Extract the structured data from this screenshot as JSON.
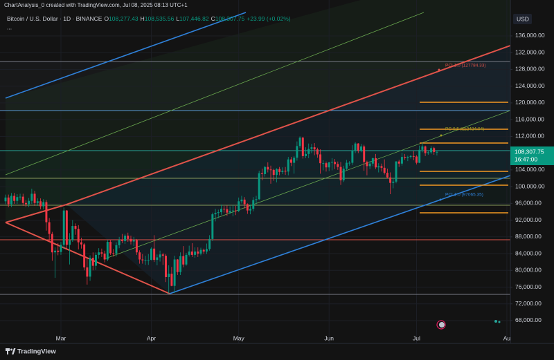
{
  "header": {
    "credit": "ChartAnalysis_0 created with TradingView.com, Jul 08, 2025 08:13 UTC+1",
    "symbol": "Bitcoin / U.S. Dollar · 1D · BINANCE",
    "ohlc": [
      {
        "key": "O",
        "value": "108,277.43"
      },
      {
        "key": "H",
        "value": "108,535.56"
      },
      {
        "key": "L",
        "value": "107,446.82"
      },
      {
        "key": "C",
        "value": "108,307.75"
      }
    ],
    "change": "+23.99 (+0.02%)",
    "more": "..."
  },
  "currency": "USD",
  "price_badge": {
    "price": "108,307.75",
    "time": "16:47:00"
  },
  "annotations": [
    {
      "text": "PCL1.0 (127784.33)",
      "color": "#e0534a"
    },
    {
      "text": "PC 0.5 (112424.04)",
      "color": "#9e9d24"
    },
    {
      "text": "PCL1.0 (97065.35)",
      "color": "#2f80d8"
    }
  ],
  "brand": "TradingView",
  "chart_data": {
    "type": "candlestick",
    "up_color": "#089981",
    "down_color": "#f23645",
    "grid": true,
    "xlim": [
      -1.9,
      173.2
    ],
    "ylim": [
      62550,
      144580
    ],
    "xticks": [
      {
        "value": 19,
        "label": "Mar"
      },
      {
        "value": 50,
        "label": "Apr"
      },
      {
        "value": 80,
        "label": "May"
      },
      {
        "value": 111,
        "label": "Jun"
      },
      {
        "value": 141,
        "label": "Jul"
      },
      {
        "value": 172,
        "label": "Au"
      }
    ],
    "yticks": [
      {
        "value": 136000,
        "label": "136,000.00"
      },
      {
        "value": 132000,
        "label": "132,000.00"
      },
      {
        "value": 128000,
        "label": "128,000.00"
      },
      {
        "value": 124000,
        "label": "124,000.00"
      },
      {
        "value": 120000,
        "label": "120,000.00"
      },
      {
        "value": 116000,
        "label": "116,000.00"
      },
      {
        "value": 112000,
        "label": "112,000.00"
      },
      {
        "value": 104000,
        "label": "104,000.00"
      },
      {
        "value": 100000,
        "label": "100,000.00"
      },
      {
        "value": 96000,
        "label": "96,000.00"
      },
      {
        "value": 92000,
        "label": "92,000.00"
      },
      {
        "value": 88000,
        "label": "88,000.00"
      },
      {
        "value": 84000,
        "label": "84,000.00"
      },
      {
        "value": 80000,
        "label": "80,000.00"
      },
      {
        "value": 76000,
        "label": "76,000.00"
      },
      {
        "value": 72000,
        "label": "72,000.00"
      },
      {
        "value": 68000,
        "label": "68,000.00"
      }
    ],
    "open": [
      96500,
      97400,
      95800,
      97800,
      96600,
      97500,
      97600,
      96100,
      95800,
      96600,
      98300,
      96100,
      96500,
      95300,
      96300,
      91500,
      88700,
      84300,
      84700,
      84400,
      86100,
      94300,
      86100,
      87200,
      90600,
      89900,
      86700,
      86200,
      80700,
      78500,
      83000,
      81100,
      83700,
      84300,
      84000,
      82600,
      86800,
      84100,
      84000,
      86000,
      87300,
      87000,
      88300,
      87500,
      86900,
      87200,
      84300,
      82600,
      82400,
      82500,
      82500,
      85200,
      82500,
      83100,
      83800,
      83500,
      78400,
      79200,
      76300,
      82600,
      79600,
      83400,
      81400,
      83700,
      84500,
      83700,
      84500,
      84000,
      84900,
      84500,
      85100,
      87500,
      93400,
      93700,
      93900,
      94700,
      94600,
      93800,
      94200,
      94300,
      94200,
      96500,
      96900,
      95800,
      94300,
      94700,
      96800,
      97000,
      103200,
      103000,
      104700,
      104100,
      104000,
      102800,
      104200,
      103500,
      103800,
      103600,
      106500,
      105700,
      106900,
      109700,
      111700,
      107300,
      107800,
      109000,
      109400,
      108900,
      107700,
      105600,
      105600,
      104600,
      105800,
      105900,
      105400,
      104700,
      101500,
      104300,
      105700,
      105700,
      108700,
      110300,
      108600,
      109600,
      105900,
      104900,
      105500,
      106800,
      104600,
      104900,
      104500,
      103300,
      102200,
      100900,
      101200,
      106000,
      105500,
      107100,
      106900,
      107100,
      107300,
      107200,
      105700,
      108800,
      109600,
      108000,
      108200,
      109200,
      108277.43
    ],
    "high": [
      98100,
      98100,
      98500,
      98500,
      98200,
      98300,
      98300,
      96800,
      97300,
      99500,
      99000,
      97200,
      97200,
      97000,
      96800,
      92500,
      89200,
      85500,
      86500,
      86800,
      95000,
      94400,
      88900,
      92000,
      91200,
      90800,
      87800,
      86500,
      83000,
      83600,
      84300,
      84300,
      85300,
      85200,
      84700,
      87300,
      87400,
      85100,
      86700,
      88000,
      88700,
      88700,
      89000,
      88300,
      88000,
      87500,
      84800,
      83900,
      83500,
      83900,
      85500,
      88400,
      83800,
      84700,
      84200,
      83900,
      81200,
      80800,
      83500,
      82700,
      84300,
      85800,
      84200,
      85900,
      86500,
      85500,
      85500,
      85400,
      85200,
      86400,
      88400,
      93800,
      94700,
      94500,
      95700,
      95400,
      95500,
      95300,
      95600,
      95400,
      97400,
      97800,
      97500,
      96000,
      95700,
      97500,
      97800,
      103800,
      104300,
      104900,
      105800,
      105000,
      104300,
      104400,
      104700,
      104600,
      104700,
      107100,
      107100,
      107300,
      110800,
      112000,
      111900,
      109400,
      110300,
      110200,
      110400,
      109300,
      108900,
      106300,
      106000,
      105900,
      106800,
      106600,
      106000,
      105900,
      105000,
      106400,
      106100,
      109900,
      110600,
      110400,
      110200,
      110000,
      106200,
      106100,
      106900,
      107800,
      105600,
      105500,
      106500,
      104300,
      103400,
      102100,
      106100,
      106400,
      108100,
      107800,
      107400,
      107600,
      108500,
      107500,
      109800,
      110500,
      109800,
      108500,
      109700,
      109500,
      108535.56
    ],
    "low": [
      95800,
      95100,
      95100,
      95900,
      95900,
      96800,
      95400,
      95100,
      95100,
      95900,
      95400,
      95400,
      94600,
      94600,
      89500,
      86800,
      82300,
      78200,
      83600,
      83700,
      85100,
      85100,
      81400,
      86800,
      88500,
      85000,
      85200,
      80000,
      76600,
      77500,
      80000,
      80100,
      82800,
      83200,
      81900,
      82200,
      83700,
      83300,
      83300,
      85300,
      86500,
      86300,
      86800,
      86200,
      85800,
      83700,
      81600,
      81600,
      81300,
      81300,
      82400,
      82000,
      81200,
      82100,
      81300,
      77200,
      74500,
      76200,
      74600,
      78900,
      78900,
      80700,
      81100,
      83300,
      83200,
      83000,
      83200,
      83600,
      83900,
      83900,
      84700,
      87000,
      91700,
      92500,
      93300,
      93800,
      93000,
      93500,
      92900,
      93200,
      93900,
      96000,
      94800,
      93500,
      93400,
      94100,
      95800,
      96800,
      101500,
      102400,
      103400,
      100700,
      101400,
      101000,
      102700,
      103000,
      102800,
      102700,
      104900,
      103100,
      106200,
      109200,
      106700,
      106800,
      106800,
      108000,
      107500,
      106900,
      103100,
      103900,
      103600,
      103700,
      103900,
      104200,
      104000,
      100400,
      101100,
      103900,
      105000,
      105200,
      108000,
      108000,
      108200,
      103800,
      102700,
      104200,
      104900,
      104200,
      103400,
      103600,
      102900,
      102000,
      98200,
      99600,
      100800,
      104700,
      105000,
      106400,
      106100,
      106700,
      106300,
      105300,
      105600,
      108200,
      107300,
      107600,
      107800,
      107600,
      107446.82
    ],
    "close": [
      97400,
      95800,
      97800,
      96600,
      97500,
      97600,
      96100,
      95800,
      96600,
      98300,
      96100,
      96500,
      95300,
      96300,
      91500,
      88700,
      84300,
      84700,
      84400,
      86100,
      94300,
      86100,
      87200,
      90600,
      89900,
      86700,
      86200,
      80700,
      78500,
      83000,
      81100,
      83700,
      84300,
      84000,
      82600,
      86800,
      84100,
      84000,
      86000,
      87300,
      87000,
      88300,
      87500,
      86900,
      87200,
      84300,
      82600,
      82400,
      82500,
      82500,
      85200,
      82500,
      83100,
      83800,
      83500,
      78400,
      79200,
      76300,
      82600,
      79600,
      83400,
      81400,
      83700,
      84500,
      83700,
      84500,
      84000,
      84900,
      84500,
      85100,
      87500,
      93400,
      93700,
      93900,
      94700,
      94600,
      93800,
      94200,
      94300,
      94200,
      96500,
      96900,
      95800,
      94300,
      94700,
      96800,
      97000,
      103200,
      103000,
      104700,
      104100,
      104000,
      102800,
      104200,
      103500,
      103800,
      103600,
      106500,
      105700,
      106900,
      109700,
      111700,
      107300,
      107800,
      109000,
      109400,
      108900,
      107700,
      105600,
      105600,
      104600,
      105800,
      105900,
      105400,
      104700,
      101500,
      104300,
      105700,
      105700,
      108700,
      110300,
      108600,
      109600,
      105900,
      104900,
      105500,
      106800,
      104600,
      104900,
      104500,
      103300,
      102200,
      100900,
      101200,
      106000,
      105500,
      107100,
      106900,
      107100,
      107300,
      107200,
      105700,
      108800,
      109600,
      108000,
      108200,
      109200,
      108283.76,
      108307.75
    ]
  }
}
